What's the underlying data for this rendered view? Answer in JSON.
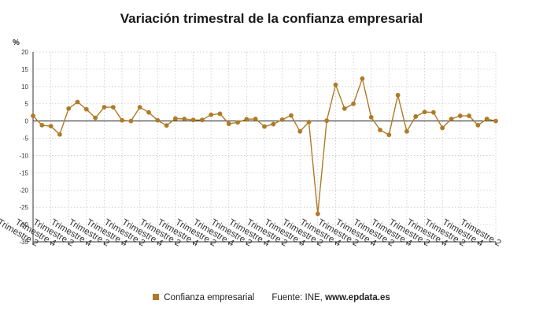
{
  "chart_data": {
    "type": "line",
    "title": "Variación trimestral de la confianza empresarial",
    "ylabel": "%",
    "xlabel": "",
    "ylim": [
      -35,
      20
    ],
    "yticks": [
      20,
      15,
      10,
      5,
      0,
      -5,
      -10,
      -15,
      -20,
      -25,
      -30,
      -35
    ],
    "grid": true,
    "legend_placement": "bottom",
    "x_tick_labels": [
      "Trimestre 2",
      "Trimestre 4",
      "Trimestre 2",
      "Trimestre 4",
      "Trimestre 2",
      "Trimestre 4",
      "Trimestre 2",
      "Trimestre 4",
      "Trimestre 2",
      "Trimestre 4",
      "Trimestre 2",
      "Trimestre 4",
      "Trimestre 2",
      "Trimestre 4",
      "Trimestre 2",
      "Trimestre 4",
      "Trimestre 2",
      "Trimestre 4",
      "Trimestre 2",
      "Trimestre 4",
      "Trimestre 2",
      "Trimestre 4",
      "Trimestre 2",
      "Trimestre 4",
      "Trimestre 2",
      "Trimestre 4",
      "Trimestre 2"
    ],
    "series": [
      {
        "name": "Confianza empresarial",
        "color": "#b07a26",
        "values": [
          1.5,
          -1.2,
          -1.5,
          -3.9,
          3.6,
          5.5,
          3.4,
          0.9,
          4.0,
          4.0,
          0.2,
          0.0,
          4.0,
          2.5,
          0.2,
          -1.3,
          0.7,
          0.6,
          0.3,
          0.3,
          1.8,
          2.1,
          -0.8,
          -0.4,
          0.5,
          0.6,
          -1.6,
          -0.9,
          0.4,
          1.6,
          -3.0,
          -0.3,
          -26.9,
          0.1,
          10.5,
          3.6,
          5.0,
          12.3,
          1.1,
          -2.6,
          -4.0,
          7.5,
          -3.0,
          1.3,
          2.6,
          2.5,
          -2.0,
          0.6,
          1.5,
          1.5,
          -1.2,
          0.6,
          0.0
        ]
      }
    ]
  },
  "legend": {
    "series_label": "Confianza empresarial",
    "source_prefix": "Fuente: INE, ",
    "source_site": "www.epdata.es"
  }
}
